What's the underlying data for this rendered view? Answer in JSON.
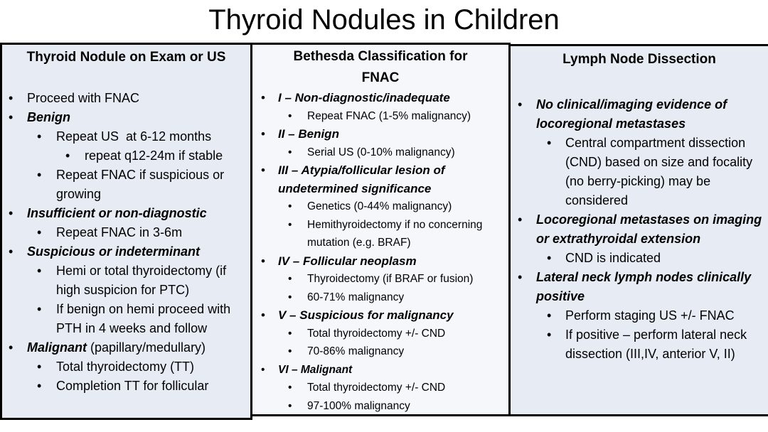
{
  "title": "Thyroid Nodules in Children",
  "columns": [
    {
      "header": "Thyroid Nodule on Exam or US",
      "items": [
        {
          "level": 1,
          "lead": "",
          "text": "Proceed with FNAC"
        },
        {
          "level": 1,
          "lead": "Benign",
          "text": ""
        },
        {
          "level": 2,
          "lead": "",
          "text": "Repeat US  at 6-12 months"
        },
        {
          "level": 3,
          "lead": "",
          "text": "repeat q12-24m if stable"
        },
        {
          "level": 2,
          "lead": "",
          "text": "Repeat FNAC if suspicious or growing"
        },
        {
          "level": 1,
          "lead": "Insufficient or non-diagnostic",
          "text": ""
        },
        {
          "level": 2,
          "lead": "",
          "text": "Repeat FNAC in 3-6m"
        },
        {
          "level": 1,
          "lead": "Suspicious or indeterminant",
          "text": ""
        },
        {
          "level": 2,
          "lead": "",
          "text": "Hemi or total thyroidectomy (if high suspicion for PTC)"
        },
        {
          "level": 2,
          "lead": "",
          "text": "If benign on hemi proceed with PTH in 4 weeks and follow"
        },
        {
          "level": 1,
          "lead": "Malignant",
          "text": " (papillary/medullary)"
        },
        {
          "level": 2,
          "lead": "",
          "text": "Total thyroidectomy (TT)"
        },
        {
          "level": 2,
          "lead": "",
          "text": "Completion TT for follicular"
        }
      ]
    },
    {
      "header": "Bethesda Classification for FNAC",
      "items": [
        {
          "level": 1,
          "lead": "I – Non-diagnostic/inadequate",
          "text": ""
        },
        {
          "level": 2,
          "lead": "",
          "text": "Repeat FNAC (1-5% malignancy)"
        },
        {
          "level": 1,
          "lead": "II – Benign",
          "text": ""
        },
        {
          "level": 2,
          "lead": "",
          "text": "Serial US (0-10% malignancy)"
        },
        {
          "level": 1,
          "lead": "III – Atypia/follicular lesion of undetermined significance",
          "text": ""
        },
        {
          "level": 2,
          "lead": "",
          "text": "Genetics (0-44% malignancy)"
        },
        {
          "level": 2,
          "lead": "",
          "text": "Hemithyroidectomy if no concerning mutation (e.g. BRAF)"
        },
        {
          "level": 1,
          "lead": "IV – Follicular neoplasm",
          "text": ""
        },
        {
          "level": 2,
          "lead": "",
          "text": "Thyroidectomy (if BRAF or fusion)"
        },
        {
          "level": 2,
          "lead": "",
          "text": "60-71% malignancy"
        },
        {
          "level": 1,
          "lead": "V – Suspicious for malignancy",
          "text": ""
        },
        {
          "level": 2,
          "lead": "",
          "text": "Total thyroidectomy +/- CND"
        },
        {
          "level": 2,
          "lead": "",
          "text": "70-86% malignancy"
        },
        {
          "level": 1,
          "lead": "VI – Malignant",
          "text": "",
          "small": true
        },
        {
          "level": 2,
          "lead": "",
          "text": "Total thyroidectomy +/- CND"
        },
        {
          "level": 2,
          "lead": "",
          "text": "97-100% malignancy"
        }
      ]
    },
    {
      "header": "Lymph Node Dissection",
      "items": [
        {
          "level": 1,
          "lead": "No clinical/imaging evidence of locoregional metastases",
          "text": ""
        },
        {
          "level": 2,
          "lead": "",
          "text": "Central compartment dissection (CND) based on size and focality (no berry-picking) may be considered"
        },
        {
          "level": 1,
          "lead": "Locoregional metastases on imaging or extrathyroidal extension",
          "text": ""
        },
        {
          "level": 2,
          "lead": "",
          "text": "CND is indicated"
        },
        {
          "level": 1,
          "lead": "Lateral neck lymph nodes clinically positive",
          "text": ""
        },
        {
          "level": 2,
          "lead": "",
          "text": "Perform staging US +/- FNAC"
        },
        {
          "level": 2,
          "lead": "",
          "text": "If positive – perform lateral neck dissection (III,IV, anterior V, II)"
        }
      ]
    }
  ]
}
